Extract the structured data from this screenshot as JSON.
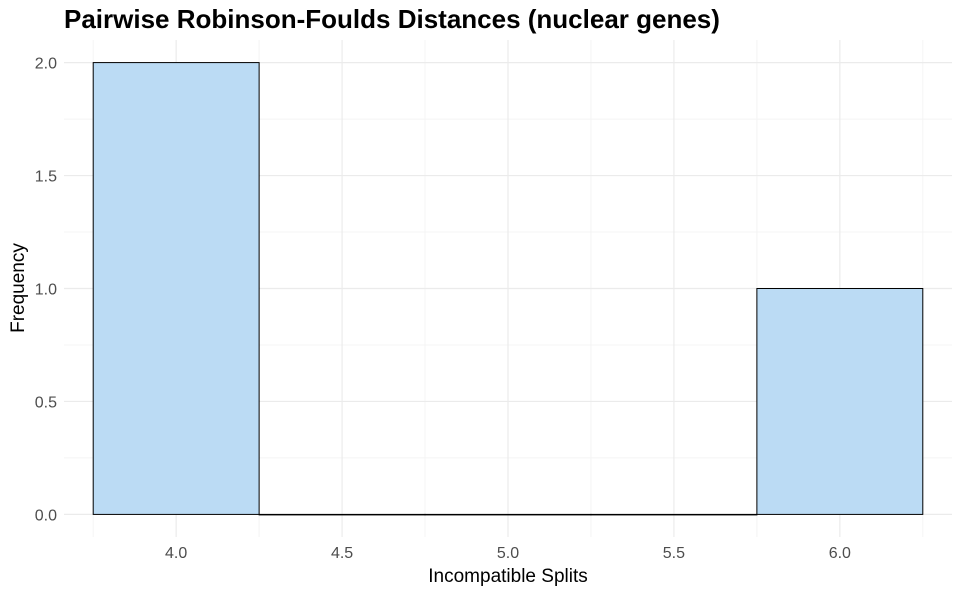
{
  "chart_data": {
    "type": "bar",
    "subtype": "histogram",
    "title": "Pairwise Robinson-Foulds Distances (nuclear genes)",
    "xlabel": "Incompatible Splits",
    "ylabel": "Frequency",
    "bins": [
      {
        "x0": 3.75,
        "x1": 4.25,
        "count": 2
      },
      {
        "x0": 4.25,
        "x1": 4.75,
        "count": 0
      },
      {
        "x0": 4.75,
        "x1": 5.25,
        "count": 0
      },
      {
        "x0": 5.25,
        "x1": 5.75,
        "count": 0
      },
      {
        "x0": 5.75,
        "x1": 6.25,
        "count": 1
      }
    ],
    "xlim": [
      3.662,
      6.338
    ],
    "ylim": [
      -0.1,
      2.1
    ],
    "x_ticks": [
      4.0,
      4.5,
      5.0,
      5.5,
      6.0
    ],
    "x_tick_labels": [
      "4.0",
      "4.5",
      "5.0",
      "5.5",
      "6.0"
    ],
    "y_ticks": [
      0,
      0.5,
      1.0,
      1.5,
      2.0
    ],
    "y_tick_labels": [
      "0.0",
      "0.5",
      "1.0",
      "1.5",
      "2.0"
    ],
    "grid": true,
    "colors": {
      "bar_fill": "#BBDBF4",
      "bar_stroke": "#000000",
      "grid_major": "#EBEBEB",
      "grid_minor": "#F4F4F4"
    }
  }
}
